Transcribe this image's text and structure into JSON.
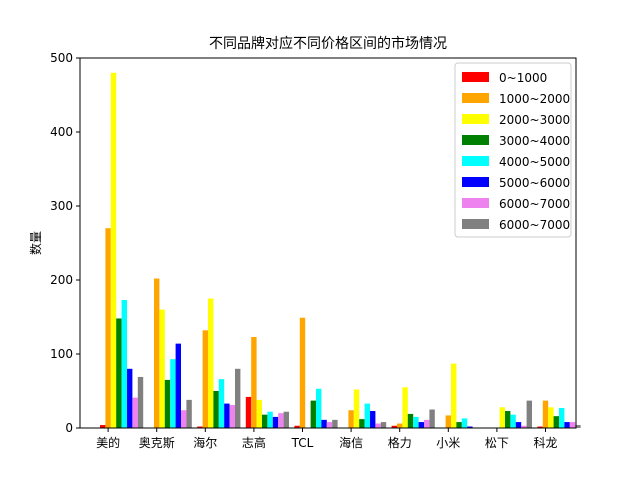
{
  "chart_data": {
    "type": "bar",
    "title": "不同品牌对应不同价格区间的市场情况",
    "xlabel": "",
    "ylabel": "数量",
    "ylim": [
      0,
      500
    ],
    "yticks": [
      0,
      100,
      200,
      300,
      400,
      500
    ],
    "grid": false,
    "legend_position": "top-right",
    "categories": [
      "美的",
      "奥克斯",
      "海尔",
      "志高",
      "TCL",
      "海信",
      "格力",
      "小米",
      "松下",
      "科龙"
    ],
    "series": [
      {
        "name": "0~1000",
        "color": "#ff0000",
        "values": [
          4,
          0,
          2,
          42,
          3,
          0,
          3,
          0,
          0,
          2
        ]
      },
      {
        "name": "1000~2000",
        "color": "#ffa500",
        "values": [
          270,
          202,
          132,
          123,
          149,
          24,
          6,
          17,
          0,
          37
        ]
      },
      {
        "name": "2000~3000",
        "color": "#ffff00",
        "values": [
          480,
          160,
          175,
          38,
          0,
          52,
          55,
          87,
          28,
          28
        ]
      },
      {
        "name": "3000~4000",
        "color": "#008000",
        "values": [
          148,
          65,
          50,
          18,
          37,
          12,
          19,
          8,
          23,
          16
        ]
      },
      {
        "name": "4000~5000",
        "color": "#00ffff",
        "values": [
          173,
          93,
          66,
          22,
          53,
          33,
          15,
          13,
          18,
          27
        ]
      },
      {
        "name": "5000~6000",
        "color": "#0000ff",
        "values": [
          80,
          114,
          33,
          15,
          11,
          23,
          8,
          2,
          8,
          8
        ]
      },
      {
        "name": "6000~7000",
        "color": "#ee82ee",
        "values": [
          41,
          24,
          31,
          20,
          8,
          6,
          11,
          0,
          3,
          8
        ]
      },
      {
        "name": "6000~7000",
        "color": "#808080",
        "values": [
          69,
          38,
          80,
          22,
          11,
          8,
          25,
          0,
          37,
          4
        ]
      }
    ]
  }
}
